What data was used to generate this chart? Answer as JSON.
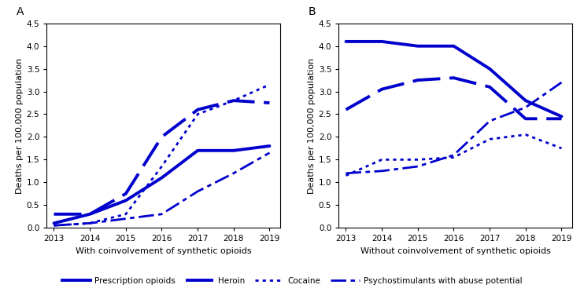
{
  "years": [
    2013,
    2014,
    2015,
    2016,
    2017,
    2018,
    2019
  ],
  "panel_a": {
    "title": "A",
    "xlabel": "With coinvolvement of synthetic opioids",
    "ylabel": "Deaths per 100,000 population",
    "ylim": [
      0,
      4.5
    ],
    "yticks": [
      0.0,
      0.5,
      1.0,
      1.5,
      2.0,
      2.5,
      3.0,
      3.5,
      4.0,
      4.5
    ],
    "prescription_opioids": [
      0.1,
      0.3,
      0.6,
      1.1,
      1.7,
      1.7,
      1.8
    ],
    "heroin": [
      0.3,
      0.3,
      0.75,
      2.0,
      2.6,
      2.8,
      2.75
    ],
    "cocaine": [
      0.05,
      0.1,
      0.3,
      1.35,
      2.5,
      2.8,
      3.15
    ],
    "psychostimulants": [
      0.05,
      0.1,
      0.2,
      0.3,
      0.8,
      1.2,
      1.65
    ]
  },
  "panel_b": {
    "title": "B",
    "xlabel": "Without coinvolvement of synthetic opioids",
    "ylabel": "Deaths per 100,000 population",
    "ylim": [
      0,
      4.5
    ],
    "yticks": [
      0.0,
      0.5,
      1.0,
      1.5,
      2.0,
      2.5,
      3.0,
      3.5,
      4.0,
      4.5
    ],
    "prescription_opioids": [
      4.1,
      4.1,
      4.0,
      4.0,
      3.5,
      2.8,
      2.45
    ],
    "heroin": [
      2.6,
      3.05,
      3.25,
      3.3,
      3.1,
      2.4,
      2.4
    ],
    "cocaine": [
      1.15,
      1.5,
      1.5,
      1.55,
      1.95,
      2.05,
      1.75
    ],
    "psychostimulants": [
      1.2,
      1.25,
      1.35,
      1.6,
      2.35,
      2.65,
      3.2
    ]
  },
  "color": "#0000CD",
  "line_width": 2.0,
  "legend_labels": [
    "Prescription opioids",
    "Heroin",
    "Cocaine",
    "Psychostimulants with abuse potential"
  ]
}
